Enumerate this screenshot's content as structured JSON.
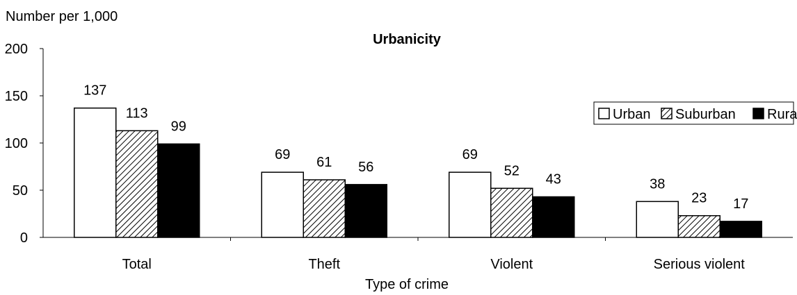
{
  "chart_data": {
    "type": "bar",
    "title": "Urbanicity",
    "ylabel": "Number per 1,000",
    "xlabel": "Type of crime",
    "categories": [
      "Total",
      "Theft",
      "Violent",
      "Serious violent"
    ],
    "series": [
      {
        "name": "Urban",
        "values": [
          137,
          69,
          69,
          38
        ],
        "fill": "#ffffff",
        "pattern": "none"
      },
      {
        "name": "Suburban",
        "values": [
          113,
          61,
          52,
          23
        ],
        "fill": "#ffffff",
        "pattern": "diagonal-hatch"
      },
      {
        "name": "Rural",
        "values": [
          99,
          56,
          43,
          17
        ],
        "fill": "#000000",
        "pattern": "none"
      }
    ],
    "ylim": [
      0,
      200
    ],
    "yticks": [
      0,
      50,
      100,
      150,
      200
    ],
    "grid": false,
    "legend_position": "top-right"
  }
}
